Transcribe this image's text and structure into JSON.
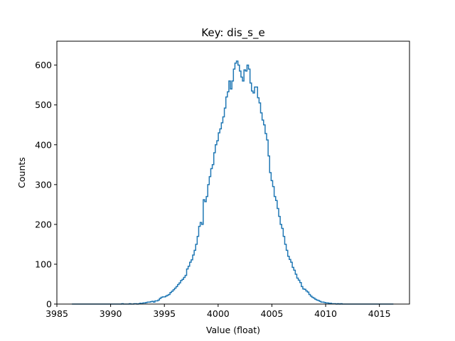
{
  "chart_data": {
    "type": "histogram-step",
    "title": "Key: dis_s_e",
    "xlabel": "Value (float)",
    "ylabel": "Counts",
    "xlim": [
      3985.0,
      4017.8
    ],
    "ylim": [
      0,
      660
    ],
    "xticks": [
      3985,
      3990,
      3995,
      4000,
      4005,
      4010,
      4015
    ],
    "yticks": [
      0,
      100,
      200,
      300,
      400,
      500,
      600
    ],
    "grid": false,
    "line_color": "#1f77b4",
    "bins": {
      "x_start": 3986.4,
      "x_end": 4016.3,
      "counts": [
        0,
        0,
        0,
        0,
        0,
        0,
        0,
        0,
        0,
        0,
        0,
        0,
        0,
        0,
        0,
        0,
        0,
        0,
        0,
        0,
        0,
        0,
        0,
        0,
        0,
        0,
        0,
        0,
        0,
        0,
        0,
        0,
        0,
        1,
        0,
        0,
        0,
        0,
        1,
        0,
        0,
        1,
        1,
        0,
        1,
        2,
        1,
        3,
        3,
        4,
        5,
        5,
        6,
        7,
        5,
        8,
        8,
        10,
        14,
        17,
        18,
        18,
        20,
        22,
        24,
        29,
        32,
        36,
        40,
        44,
        49,
        53,
        59,
        62,
        67,
        72,
        88,
        95,
        105,
        111,
        123,
        135,
        150,
        170,
        195,
        205,
        200,
        262,
        257,
        270,
        300,
        320,
        340,
        350,
        380,
        400,
        410,
        430,
        440,
        455,
        470,
        492,
        520,
        533,
        560,
        540,
        560,
        590,
        605,
        610,
        600,
        585,
        570,
        560,
        588,
        585,
        600,
        590,
        555,
        535,
        530,
        545,
        545,
        518,
        505,
        480,
        462,
        450,
        428,
        412,
        372,
        330,
        310,
        295,
        270,
        260,
        240,
        220,
        200,
        190,
        170,
        150,
        135,
        120,
        112,
        105,
        92,
        85,
        75,
        65,
        60,
        54,
        44,
        38,
        37,
        33,
        30,
        24,
        20,
        17,
        15,
        12,
        10,
        9,
        7,
        5,
        5,
        4,
        3,
        3,
        2,
        2,
        1,
        1,
        1,
        0,
        1,
        0,
        1,
        0,
        0,
        0,
        0,
        0,
        0,
        0,
        0,
        0,
        0,
        0,
        0,
        0,
        0,
        0,
        0,
        0,
        0,
        0,
        0,
        0,
        0,
        0,
        0,
        0,
        0,
        0,
        0,
        0,
        0,
        0,
        0,
        0,
        0
      ]
    }
  }
}
